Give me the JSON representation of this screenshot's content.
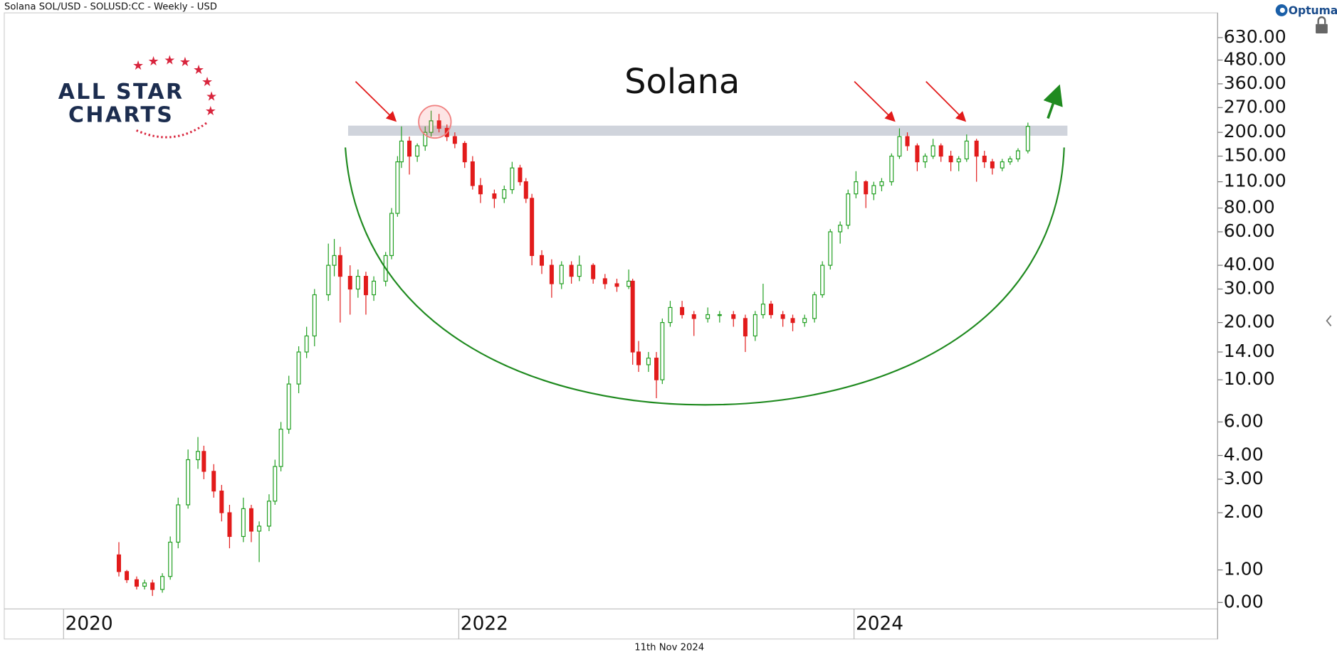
{
  "header": "Solana SOL/USD - SOLUSD:CC - Weekly - USD",
  "footer_date": "11th Nov 2024",
  "brand": "Optuma",
  "logo": {
    "line1": "ALL STAR",
    "line2": "CHARTS"
  },
  "chart_data": {
    "type": "candlestick",
    "title": "Solana",
    "yscale": "symlog",
    "linthresh": 1,
    "linscale": 0.171,
    "ylim": [
      -0.2,
      850
    ],
    "xlim": [
      2019.7,
      2025.84
    ],
    "xticks": [
      2020,
      2022,
      2024
    ],
    "yticks": [
      {
        "value": 630,
        "label": "630.00"
      },
      {
        "value": 480,
        "label": "480.00"
      },
      {
        "value": 360,
        "label": "360.00"
      },
      {
        "value": 270,
        "label": "270.00"
      },
      {
        "value": 200,
        "label": "200.00"
      },
      {
        "value": 150,
        "label": "150.00"
      },
      {
        "value": 110,
        "label": "110.00"
      },
      {
        "value": 80,
        "label": "80.00"
      },
      {
        "value": 60,
        "label": "60.00"
      },
      {
        "value": 40,
        "label": "40.00"
      },
      {
        "value": 30,
        "label": "30.00"
      },
      {
        "value": 20,
        "label": "20.00"
      },
      {
        "value": 14,
        "label": "14.00"
      },
      {
        "value": 10,
        "label": "10.00"
      },
      {
        "value": 6,
        "label": "6.00"
      },
      {
        "value": 4,
        "label": "4.00"
      },
      {
        "value": 3,
        "label": "3.00"
      },
      {
        "value": 2,
        "label": "2.00"
      },
      {
        "value": 1,
        "label": "1.00"
      },
      {
        "value": 0,
        "label": "0.00"
      }
    ],
    "up_color": "#22a022",
    "down_color": "#e21b1b",
    "band": {
      "low": 192,
      "high": 217,
      "x": [
        2021.44,
        2025.08
      ],
      "color": "#c8ccd6"
    },
    "x": [
      2020.28,
      2020.32,
      2020.37,
      2020.41,
      2020.45,
      2020.5,
      2020.54,
      2020.58,
      2020.63,
      2020.68,
      2020.71,
      2020.76,
      2020.8,
      2020.84,
      2020.91,
      2020.95,
      2020.99,
      2021.04,
      2021.07,
      2021.1,
      2021.14,
      2021.19,
      2021.23,
      2021.27,
      2021.34,
      2021.37,
      2021.4,
      2021.45,
      2021.49,
      2021.53,
      2021.57,
      2021.63,
      2021.66,
      2021.69,
      2021.71,
      2021.75,
      2021.79,
      2021.83,
      2021.86,
      2021.9,
      2021.94,
      2021.98,
      2022.03,
      2022.07,
      2022.11,
      2022.18,
      2022.23,
      2022.27,
      2022.31,
      2022.34,
      2022.37,
      2022.42,
      2022.47,
      2022.52,
      2022.57,
      2022.61,
      2022.68,
      2022.74,
      2022.8,
      2022.86,
      2022.88,
      2022.91,
      2022.96,
      2023.0,
      2023.03,
      2023.07,
      2023.13,
      2023.19,
      2023.26,
      2023.32,
      2023.39,
      2023.45,
      2023.5,
      2023.54,
      2023.58,
      2023.64,
      2023.69,
      2023.75,
      2023.8,
      2023.84,
      2023.88,
      2023.93,
      2023.97,
      2024.01,
      2024.06,
      2024.1,
      2024.14,
      2024.19,
      2024.23,
      2024.27,
      2024.32,
      2024.36,
      2024.4,
      2024.44,
      2024.49,
      2024.53,
      2024.57,
      2024.62,
      2024.66,
      2024.7,
      2024.75,
      2024.79,
      2024.83,
      2024.88
    ],
    "open": [
      1.2,
      0.95,
      0.7,
      0.5,
      0.6,
      0.4,
      0.8,
      1.4,
      2.2,
      3.8,
      4.2,
      3.3,
      2.6,
      2.0,
      1.5,
      2.1,
      1.6,
      1.7,
      2.3,
      3.5,
      5.5,
      9.5,
      14,
      17,
      28,
      40,
      45,
      35,
      30,
      35,
      28,
      33,
      45,
      75,
      140,
      180,
      150,
      170,
      200,
      230,
      210,
      190,
      175,
      140,
      105,
      95,
      90,
      100,
      130,
      110,
      90,
      45,
      40,
      32,
      40,
      35,
      40,
      34,
      32,
      31,
      33,
      14,
      12,
      13,
      10,
      20,
      24,
      22,
      21,
      22,
      22,
      21,
      17,
      22,
      25,
      22,
      21,
      20,
      21,
      28,
      40,
      60,
      65,
      95,
      110,
      95,
      105,
      110,
      150,
      190,
      170,
      140,
      150,
      170,
      150,
      140,
      145,
      180,
      150,
      140,
      130,
      140,
      145,
      160
    ],
    "high": [
      1.4,
      1.0,
      0.8,
      0.7,
      0.7,
      0.9,
      1.5,
      2.4,
      4.3,
      5,
      4.5,
      3.6,
      2.8,
      2.2,
      2.4,
      2.2,
      1.8,
      2.5,
      3.8,
      6,
      10.5,
      15,
      19,
      30,
      52,
      55,
      50,
      40,
      38,
      37,
      35,
      47,
      80,
      150,
      215,
      190,
      175,
      215,
      260,
      250,
      220,
      200,
      180,
      150,
      115,
      100,
      105,
      140,
      135,
      115,
      95,
      48,
      43,
      42,
      42,
      45,
      41,
      36,
      34,
      38,
      34,
      16,
      14,
      14,
      21,
      26,
      26,
      23,
      24,
      23,
      23,
      22,
      23,
      32,
      26,
      23,
      22,
      22,
      29,
      42,
      62,
      68,
      100,
      125,
      112,
      110,
      115,
      155,
      210,
      200,
      175,
      155,
      185,
      175,
      160,
      150,
      195,
      185,
      160,
      145,
      145,
      150,
      165,
      225
    ],
    "low": [
      0.8,
      0.6,
      0.4,
      0.4,
      0.2,
      0.3,
      0.7,
      1.3,
      2.1,
      3.4,
      3.0,
      2.4,
      1.8,
      1.3,
      1.4,
      1.4,
      1.1,
      1.6,
      2.2,
      3.3,
      5.2,
      8.5,
      13,
      15,
      26,
      35,
      20,
      22,
      27,
      22,
      26,
      31,
      43,
      72,
      130,
      120,
      140,
      160,
      190,
      200,
      180,
      165,
      130,
      100,
      85,
      80,
      85,
      95,
      105,
      85,
      40,
      36,
      27,
      30,
      32,
      33,
      32,
      30,
      29,
      30,
      12,
      11,
      11,
      8,
      9.5,
      19,
      21,
      17,
      20,
      20,
      19,
      14,
      16,
      21,
      21,
      19,
      18,
      19,
      20,
      27,
      38,
      52,
      62,
      90,
      80,
      88,
      98,
      105,
      145,
      160,
      125,
      130,
      145,
      140,
      125,
      125,
      140,
      110,
      130,
      120,
      125,
      135,
      140,
      155
    ],
    "close": [
      0.95,
      0.7,
      0.5,
      0.6,
      0.4,
      0.8,
      1.4,
      2.2,
      3.8,
      4.2,
      3.3,
      2.6,
      2.0,
      1.5,
      2.1,
      1.6,
      1.7,
      2.3,
      3.5,
      5.5,
      9.5,
      14,
      17,
      28,
      40,
      45,
      35,
      30,
      35,
      28,
      33,
      45,
      75,
      140,
      180,
      150,
      170,
      200,
      230,
      210,
      190,
      175,
      140,
      105,
      95,
      90,
      100,
      130,
      110,
      90,
      45,
      40,
      32,
      40,
      35,
      40,
      34,
      32,
      31,
      33,
      14,
      12,
      13,
      10,
      20,
      24,
      22,
      21,
      22,
      22,
      21,
      17,
      22,
      25,
      22,
      21,
      20,
      21,
      28,
      40,
      60,
      65,
      95,
      110,
      95,
      105,
      110,
      150,
      190,
      170,
      140,
      150,
      170,
      150,
      140,
      145,
      180,
      150,
      140,
      130,
      140,
      145,
      160,
      215
    ]
  }
}
